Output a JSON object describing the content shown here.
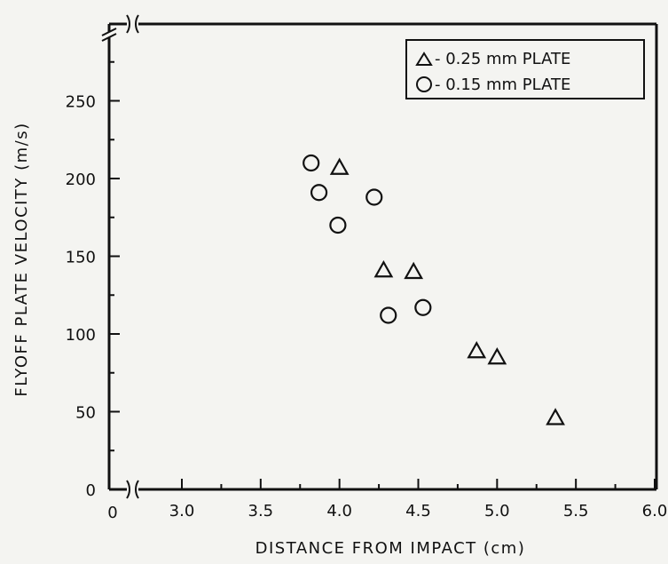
{
  "chart_data": {
    "type": "scatter",
    "xlabel": "DISTANCE FROM IMPACT (cm)",
    "ylabel": "FLYOFF PLATE VELOCITY (m/s)",
    "xlim": [
      2.6,
      6.0
    ],
    "ylim": [
      0,
      290
    ],
    "x_ticks": [
      {
        "value": 3.0,
        "label": "3.0"
      },
      {
        "value": 3.5,
        "label": "3.5"
      },
      {
        "value": 4.0,
        "label": "4.0"
      },
      {
        "value": 4.5,
        "label": "4.5"
      },
      {
        "value": 5.0,
        "label": "5.0"
      },
      {
        "value": 5.5,
        "label": "5.5"
      },
      {
        "value": 6.0,
        "label": "6.0"
      }
    ],
    "x_origin_label": "0",
    "y_ticks": [
      {
        "value": 0,
        "label": "0"
      },
      {
        "value": 50,
        "label": "50"
      },
      {
        "value": 100,
        "label": "100"
      },
      {
        "value": 150,
        "label": "150"
      },
      {
        "value": 200,
        "label": "200"
      },
      {
        "value": 250,
        "label": "250"
      }
    ],
    "axis_breaks": [
      "x",
      "y"
    ],
    "grid": false,
    "legend_position": "top-right",
    "series": [
      {
        "name": "- 0.25 mm PLATE",
        "marker": "triangle",
        "points": [
          {
            "x": 4.0,
            "y": 207
          },
          {
            "x": 4.28,
            "y": 141
          },
          {
            "x": 4.47,
            "y": 140
          },
          {
            "x": 4.87,
            "y": 89
          },
          {
            "x": 5.0,
            "y": 85
          },
          {
            "x": 5.37,
            "y": 46
          }
        ]
      },
      {
        "name": "- 0.15 mm PLATE",
        "marker": "circle",
        "points": [
          {
            "x": 3.82,
            "y": 210
          },
          {
            "x": 3.87,
            "y": 191
          },
          {
            "x": 3.99,
            "y": 170
          },
          {
            "x": 4.22,
            "y": 188
          },
          {
            "x": 4.31,
            "y": 112
          },
          {
            "x": 4.53,
            "y": 117
          }
        ]
      }
    ]
  }
}
